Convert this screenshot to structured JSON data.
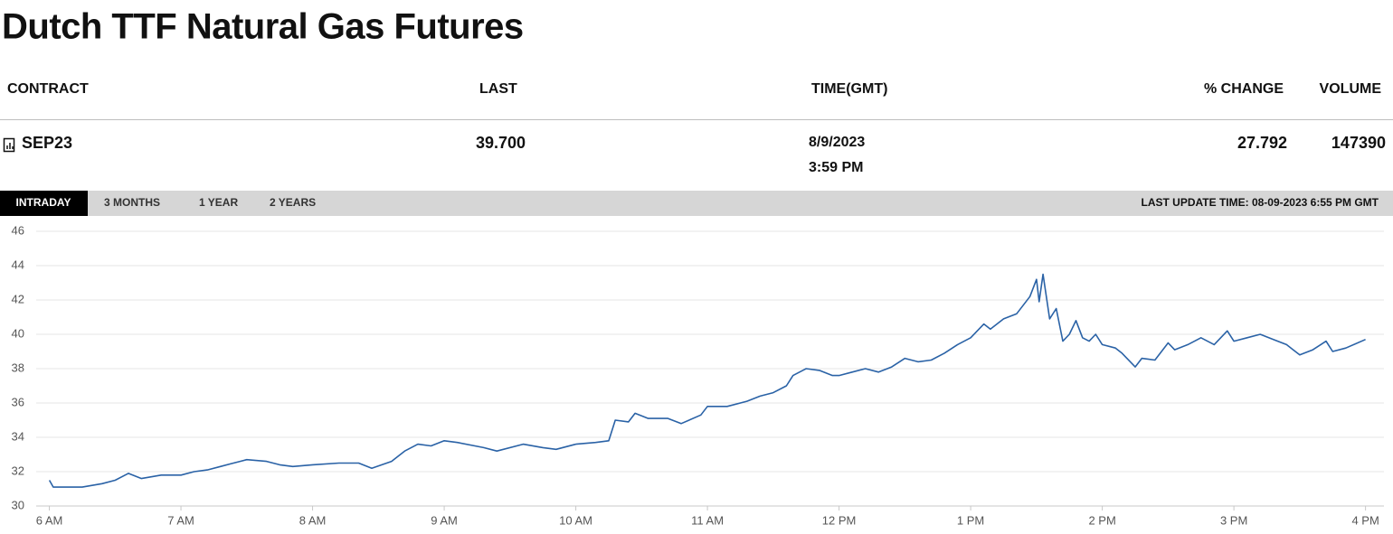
{
  "header": {
    "title": "Dutch TTF Natural Gas Futures"
  },
  "table": {
    "columns": [
      "CONTRACT",
      "LAST",
      "TIME(GMT)",
      "% CHANGE",
      "VOLUME"
    ],
    "rows": [
      [
        "SEP23",
        "39.700",
        [
          "8/9/2023",
          "3:59 PM"
        ],
        "27.792",
        "147390"
      ]
    ]
  },
  "tabs": [
    "INTRADAY",
    "3 MONTHS",
    "1 YEAR",
    "2 YEARS"
  ],
  "last_update": "LAST UPDATE TIME: 08-09-2023 6:55 PM GMT",
  "chart_data": {
    "type": "line",
    "color": "#2a62a6",
    "grid": true,
    "xlim": [
      5.9,
      16.14
    ],
    "ylim": [
      30,
      46
    ],
    "yticks": [
      30,
      32,
      34,
      36,
      38,
      40,
      42,
      44,
      46
    ],
    "xticks": [
      {
        "value": 6,
        "label": "6 AM"
      },
      {
        "value": 7,
        "label": "7 AM"
      },
      {
        "value": 8,
        "label": "8 AM"
      },
      {
        "value": 9,
        "label": "9 AM"
      },
      {
        "value": 10,
        "label": "10 AM"
      },
      {
        "value": 11,
        "label": "11 AM"
      },
      {
        "value": 12,
        "label": "12 PM"
      },
      {
        "value": 13,
        "label": "1 PM"
      },
      {
        "value": 14,
        "label": "2 PM"
      },
      {
        "value": 15,
        "label": "3 PM"
      },
      {
        "value": 16,
        "label": "4 PM"
      }
    ],
    "x": [
      6.0,
      6.03,
      6.25,
      6.4,
      6.5,
      6.6,
      6.7,
      6.85,
      7.0,
      7.1,
      7.2,
      7.3,
      7.45,
      7.5,
      7.65,
      7.75,
      7.85,
      8.0,
      8.2,
      8.35,
      8.45,
      8.6,
      8.7,
      8.8,
      8.9,
      9.0,
      9.1,
      9.3,
      9.4,
      9.6,
      9.75,
      9.85,
      10.0,
      10.15,
      10.25,
      10.3,
      10.4,
      10.45,
      10.55,
      10.7,
      10.8,
      10.95,
      11.0,
      11.15,
      11.3,
      11.4,
      11.5,
      11.6,
      11.65,
      11.75,
      11.85,
      11.95,
      12.0,
      12.1,
      12.2,
      12.3,
      12.4,
      12.5,
      12.6,
      12.7,
      12.8,
      12.9,
      13.0,
      13.1,
      13.15,
      13.25,
      13.35,
      13.45,
      13.5,
      13.52,
      13.55,
      13.6,
      13.65,
      13.7,
      13.75,
      13.8,
      13.85,
      13.9,
      13.95,
      14.0,
      14.1,
      14.15,
      14.25,
      14.3,
      14.4,
      14.5,
      14.55,
      14.65,
      14.75,
      14.85,
      14.95,
      15.0,
      15.1,
      15.2,
      15.3,
      15.4,
      15.45,
      15.5,
      15.6,
      15.7,
      15.75,
      15.85,
      16.0
    ],
    "values": [
      31.5,
      31.1,
      31.1,
      31.3,
      31.5,
      31.9,
      31.6,
      31.8,
      31.8,
      32.0,
      32.1,
      32.3,
      32.6,
      32.7,
      32.6,
      32.4,
      32.3,
      32.4,
      32.5,
      32.5,
      32.2,
      32.6,
      33.2,
      33.6,
      33.5,
      33.8,
      33.7,
      33.4,
      33.2,
      33.6,
      33.4,
      33.3,
      33.6,
      33.7,
      33.8,
      35.0,
      34.9,
      35.4,
      35.1,
      35.1,
      34.8,
      35.3,
      35.8,
      35.8,
      36.1,
      36.4,
      36.6,
      37.0,
      37.6,
      38.0,
      37.9,
      37.6,
      37.6,
      37.8,
      38.0,
      37.8,
      38.1,
      38.6,
      38.4,
      38.5,
      38.9,
      39.4,
      39.8,
      40.6,
      40.3,
      40.9,
      41.2,
      42.2,
      43.2,
      41.9,
      43.5,
      40.9,
      41.5,
      39.6,
      40.0,
      40.8,
      39.8,
      39.6,
      40.0,
      39.4,
      39.2,
      38.9,
      38.1,
      38.6,
      38.5,
      39.5,
      39.1,
      39.4,
      39.8,
      39.4,
      40.2,
      39.6,
      39.8,
      40.0,
      39.7,
      39.4,
      39.1,
      38.8,
      39.1,
      39.6,
      39.0,
      39.2,
      39.7
    ]
  }
}
